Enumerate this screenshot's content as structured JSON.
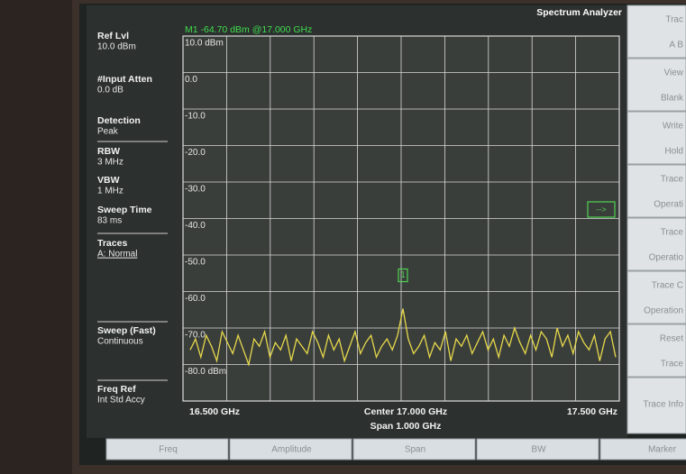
{
  "header": {
    "mode": "Spectrum Analyzer",
    "marker_readout": "M1 -64.70 dBm @17.000 GHz"
  },
  "left_panel": [
    {
      "label": "Ref Lvl",
      "value": "10.0 dBm"
    },
    {
      "label": "#Input Atten",
      "value": "0.0 dB"
    },
    {
      "label": "Detection",
      "value": "Peak"
    },
    {
      "label": "RBW",
      "value": "3 MHz"
    },
    {
      "label": "VBW",
      "value": "1 MHz"
    },
    {
      "label": "Sweep Time",
      "value": "83 ms"
    },
    {
      "label": "Traces",
      "value": "A: Normal"
    },
    {
      "label": "Sweep (Fast)",
      "value": "Continuous"
    },
    {
      "label": "Freq Ref",
      "value": "Int Std Accy"
    }
  ],
  "trace": {
    "color": "#e6d84b",
    "ylim": [
      -90,
      10
    ],
    "y_labels": [
      {
        "value": 10,
        "label": "10.0 dBm"
      },
      {
        "value": 0,
        "label": "0.0"
      },
      {
        "value": -10,
        "label": "-10.0"
      },
      {
        "value": -20,
        "label": "-20.0"
      },
      {
        "value": -30,
        "label": "-30.0"
      },
      {
        "value": -40,
        "label": "-40.0"
      },
      {
        "value": -50,
        "label": "-50.0"
      },
      {
        "value": -60,
        "label": "-60.0"
      },
      {
        "value": -70,
        "label": "-70.0"
      },
      {
        "value": -80,
        "label": "-80.0 dBm"
      }
    ],
    "marker_label": "1",
    "values": [
      -76,
      -73,
      -78,
      -72,
      -75,
      -79,
      -71,
      -74,
      -77,
      -72,
      -76,
      -80,
      -73,
      -75,
      -71,
      -78,
      -74,
      -76,
      -72,
      -79,
      -73,
      -75,
      -77,
      -71,
      -74,
      -78,
      -72,
      -76,
      -73,
      -79,
      -75,
      -71,
      -77,
      -74,
      -72,
      -78,
      -75,
      -73,
      -76,
      -72,
      -64.7,
      -73,
      -77,
      -75,
      -72,
      -78,
      -74,
      -76,
      -71,
      -79,
      -73,
      -75,
      -72,
      -77,
      -74,
      -71,
      -76,
      -73,
      -78,
      -72,
      -75,
      -70,
      -74,
      -77,
      -72,
      -76,
      -71,
      -73,
      -78,
      -70,
      -75,
      -72,
      -77,
      -71,
      -74,
      -76,
      -72,
      -79,
      -73,
      -71,
      -78
    ]
  },
  "x_axis": {
    "start": "16.500 GHz",
    "center": "Center 17.000 GHz",
    "span": "Span 1.000 GHz",
    "stop": "17.500 GHz"
  },
  "softkeys": [
    [
      "Trac",
      "A B"
    ],
    [
      "View",
      "Blank"
    ],
    [
      "Write",
      "Hold"
    ],
    [
      "Trace",
      "Operati"
    ],
    [
      "Trace",
      "Operatio"
    ],
    [
      "Trace C",
      "Operation"
    ],
    [
      "Reset",
      "Trace"
    ],
    [
      "Trace Info"
    ]
  ],
  "bottom_menu": [
    "Freq",
    "Amplitude",
    "Span",
    "BW",
    "Marker"
  ]
}
